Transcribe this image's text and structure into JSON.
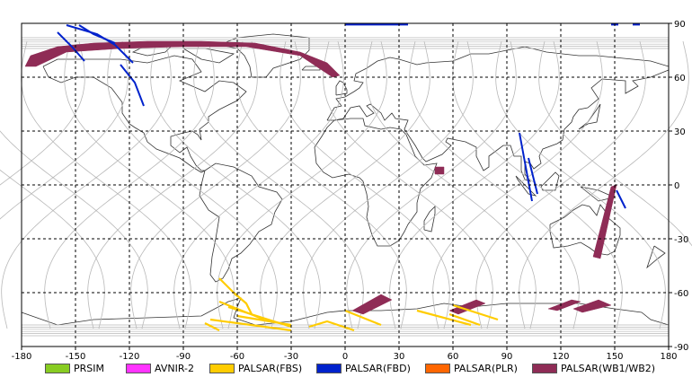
{
  "map": {
    "lon_ticks": [
      "-180",
      "-150",
      "-120",
      "-90",
      "-60",
      "-30",
      "0",
      "30",
      "60",
      "90",
      "120",
      "150",
      "180"
    ],
    "lat_ticks": [
      "90",
      "60",
      "30",
      "0",
      "-30",
      "-60",
      "-90"
    ],
    "lon_range": [
      -180,
      180
    ],
    "lat_range": [
      -90,
      90
    ],
    "grid": "dashed",
    "colors": {
      "coast": "#333333",
      "orbit": "#b8b8b8",
      "grid": "#000000"
    }
  },
  "legend": {
    "items": [
      {
        "label": "PRSIM",
        "color": "#88cc22"
      },
      {
        "label": "AVNIR-2",
        "color": "#ff33ff"
      },
      {
        "label": "PALSAR(FBS)",
        "color": "#ffcc00"
      },
      {
        "label": "PALSAR(FBD)",
        "color": "#0022cc"
      },
      {
        "label": "PALSAR(PLR)",
        "color": "#ff6600"
      },
      {
        "label": "PALSAR(WB1/WB2)",
        "color": "#8f2c56"
      }
    ]
  },
  "observations": {
    "wb": [
      {
        "lon": [
          -178,
          -175,
          -160,
          -140,
          -110,
          -80,
          -50,
          -25,
          -10,
          -3,
          -7,
          -25,
          -55,
          -90,
          -125,
          -155,
          -172
        ],
        "lat": [
          66,
          72,
          77,
          79,
          80,
          80,
          79,
          74,
          68,
          61,
          60,
          72,
          77,
          77,
          76,
          74,
          66
        ]
      },
      {
        "lon": [
          10,
          26,
          20,
          4
        ],
        "lat": [
          -72,
          -64,
          -61,
          -70
        ]
      },
      {
        "lon": [
          63,
          78,
          73,
          58
        ],
        "lat": [
          -72,
          -66,
          -64,
          -70
        ]
      },
      {
        "lon": [
          118,
          131,
          126,
          113
        ],
        "lat": [
          -70,
          -65,
          -64,
          -69
        ]
      },
      {
        "lon": [
          132,
          148,
          141,
          127
        ],
        "lat": [
          -71,
          -67,
          -64,
          -69
        ]
      },
      {
        "lon": [
          148,
          151,
          142,
          138
        ],
        "lat": [
          -1,
          0,
          -41,
          -40
        ]
      },
      {
        "lon": [
          50,
          55,
          55,
          50
        ],
        "lat": [
          10,
          10,
          6,
          6
        ]
      }
    ],
    "fbd": [
      {
        "lon": [
          -148,
          -140,
          -128
        ],
        "lat": [
          89,
          84,
          79
        ]
      },
      {
        "lon": [
          -155,
          -138,
          -128,
          -118
        ],
        "lat": [
          89,
          84,
          78,
          68
        ]
      },
      {
        "lon": [
          -160,
          -152,
          -145
        ],
        "lat": [
          85,
          77,
          69
        ]
      },
      {
        "lon": [
          -125,
          -117,
          -112
        ],
        "lat": [
          67,
          57,
          44
        ]
      },
      {
        "lon": [
          97,
          104
        ],
        "lat": [
          29,
          -9
        ]
      },
      {
        "lon": [
          102,
          107
        ],
        "lat": [
          15,
          -5
        ]
      },
      {
        "lon": [
          151,
          156
        ],
        "lat": [
          -3,
          -13
        ]
      },
      {
        "lon": [
          0,
          35
        ],
        "lat": [
          89.3,
          89.3
        ]
      },
      {
        "lon": [
          148,
          152
        ],
        "lat": [
          89.3,
          89.3
        ]
      },
      {
        "lon": [
          160,
          164
        ],
        "lat": [
          89.3,
          89.3
        ]
      }
    ],
    "fbs": [
      {
        "lon": [
          -70,
          -45
        ],
        "lat": [
          -65,
          -75
        ]
      },
      {
        "lon": [
          -65,
          -30
        ],
        "lat": [
          -68,
          -79
        ]
      },
      {
        "lon": [
          -60,
          -30
        ],
        "lat": [
          -73,
          -78
        ]
      },
      {
        "lon": [
          -75,
          -30
        ],
        "lat": [
          -75,
          -81
        ]
      },
      {
        "lon": [
          -20,
          -10,
          5
        ],
        "lat": [
          -79,
          -76,
          -81
        ]
      },
      {
        "lon": [
          -62,
          -55,
          -52
        ],
        "lat": [
          -60,
          -66,
          -72
        ]
      },
      {
        "lon": [
          0,
          20
        ],
        "lat": [
          -70,
          -78
        ]
      },
      {
        "lon": [
          40,
          70
        ],
        "lat": [
          -70,
          -78
        ]
      },
      {
        "lon": [
          60,
          85
        ],
        "lat": [
          -67,
          -75
        ]
      },
      {
        "lon": [
          58,
          75
        ],
        "lat": [
          -72,
          -78
        ]
      },
      {
        "lon": [
          -70,
          -60
        ],
        "lat": [
          -52,
          -62
        ]
      },
      {
        "lon": [
          -78,
          -70
        ],
        "lat": [
          -77,
          -81
        ]
      }
    ]
  }
}
